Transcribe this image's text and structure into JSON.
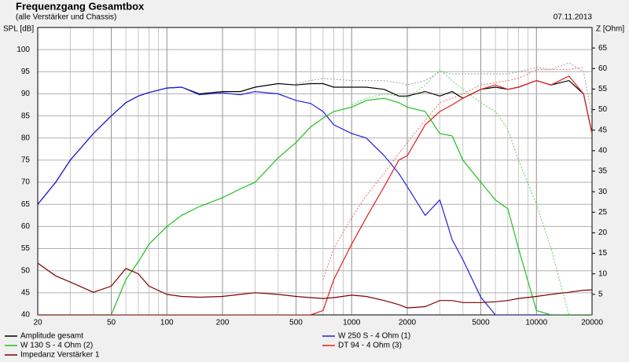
{
  "chart_data": {
    "type": "line",
    "title": "Frequenzgang Gesamtbox",
    "subtitle": "(alle Verstärker und Chassis)",
    "date": "07.11.2013",
    "y_label": "SPL [dB]",
    "y2_label": "Z [Ohm]",
    "log_x": true,
    "grid": true,
    "x": [
      20,
      25,
      30,
      40,
      50,
      60,
      70,
      80,
      100,
      120,
      150,
      200,
      250,
      300,
      400,
      500,
      600,
      700,
      800,
      1000,
      1200,
      1500,
      1800,
      2000,
      2500,
      3000,
      3500,
      4000,
      5000,
      6000,
      7000,
      8000,
      10000,
      12000,
      15000,
      18000,
      20000
    ],
    "xlim": [
      20,
      20000
    ],
    "xticks": [
      20,
      50,
      100,
      200,
      500,
      1000,
      2000,
      5000,
      10000,
      20000
    ],
    "xminorticks": [
      30,
      40,
      60,
      70,
      80,
      90,
      300,
      400,
      600,
      700,
      800,
      900,
      3000,
      4000,
      6000,
      7000,
      8000,
      9000
    ],
    "ylim": [
      40,
      105
    ],
    "yticks": [
      40,
      45,
      50,
      55,
      60,
      65,
      70,
      75,
      80,
      85,
      90,
      95,
      100
    ],
    "y2lim": [
      0,
      70
    ],
    "y2ticks": [
      5,
      10,
      15,
      20,
      25,
      30,
      35,
      40,
      45,
      50,
      55,
      60,
      65
    ],
    "series": [
      {
        "name": "Amplitude gesamt",
        "color": "#000000",
        "values": [
          65,
          70,
          75,
          81,
          85,
          88,
          89.5,
          90.3,
          91.3,
          91.5,
          90,
          90.5,
          90.5,
          91.5,
          92.3,
          92,
          92.3,
          92.3,
          91.5,
          91.5,
          91.5,
          91,
          89.5,
          89.5,
          90.5,
          89.5,
          90.5,
          89,
          91,
          91.5,
          91,
          91.5,
          93,
          92,
          93,
          90,
          81
        ]
      },
      {
        "name": "W 250 S - 4 Ohm (1)",
        "color": "#2020e0",
        "values": [
          65,
          70,
          75,
          81,
          85,
          88,
          89.5,
          90.3,
          91.3,
          91.5,
          89.8,
          90.2,
          89.8,
          90.5,
          90,
          88.5,
          87.8,
          86,
          83,
          81,
          80,
          76,
          72,
          69,
          62.5,
          66,
          57,
          52.5,
          44,
          40,
          40,
          40,
          40,
          40,
          40,
          40,
          40
        ]
      },
      {
        "name": "W 130 S - 4 Ohm (2)",
        "color": "#20c020",
        "values": [
          40,
          40,
          40,
          40,
          40,
          48,
          52,
          56,
          60,
          62.5,
          64.5,
          66.5,
          68.5,
          70,
          75.5,
          79,
          82.5,
          84.5,
          86,
          87,
          88.5,
          89,
          88,
          87,
          86,
          81,
          80.5,
          75,
          70,
          66,
          64,
          55,
          41,
          40,
          40,
          40,
          40
        ]
      },
      {
        "name": "DT 94 - 4 Ohm (3)",
        "color": "#e02020",
        "values": [
          40,
          40,
          40,
          40,
          40,
          40,
          40,
          40,
          40,
          40,
          40,
          40,
          40,
          40,
          40,
          40,
          40,
          41,
          48,
          56,
          62,
          69,
          75,
          76,
          83,
          86,
          87.5,
          89,
          91,
          92,
          91,
          91.5,
          93,
          92,
          94,
          90,
          81
        ]
      },
      {
        "name": "Impedanz Verstärker 1",
        "color": "#800000",
        "axis": "y2",
        "values": [
          12.6,
          9.5,
          8,
          5.5,
          7,
          11.3,
          10,
          7,
          5,
          4.5,
          4.3,
          4.5,
          5,
          5.4,
          5,
          4.5,
          4.2,
          4,
          4.2,
          4.8,
          4.5,
          3.5,
          2.5,
          1.7,
          2,
          3.5,
          3.5,
          3,
          3,
          3.2,
          3.5,
          4,
          4.5,
          5,
          5.5,
          6,
          6.1
        ]
      },
      {
        "color": "#a0a0a0",
        "style": "dotted",
        "values": [
          null,
          null,
          null,
          null,
          null,
          null,
          null,
          null,
          null,
          null,
          null,
          null,
          null,
          null,
          null,
          92.3,
          93,
          93.5,
          93.3,
          93,
          93,
          93,
          92.5,
          92,
          93,
          95,
          94.5,
          94.5,
          94.5,
          94.5,
          94.5,
          95,
          96,
          95.5,
          97,
          95,
          85
        ]
      },
      {
        "color": "#60d060",
        "style": "dotted",
        "values": [
          null,
          null,
          null,
          null,
          null,
          null,
          null,
          null,
          null,
          null,
          null,
          null,
          null,
          null,
          null,
          null,
          null,
          null,
          null,
          87.5,
          89,
          90,
          89.5,
          89,
          92,
          95.5,
          93,
          91,
          88,
          86,
          82,
          75,
          65,
          55,
          40,
          null,
          null
        ]
      },
      {
        "color": "#f07070",
        "style": "dotted",
        "values": [
          null,
          null,
          null,
          null,
          null,
          null,
          null,
          null,
          null,
          null,
          null,
          null,
          null,
          null,
          null,
          null,
          null,
          48,
          55,
          62,
          67,
          72,
          76.5,
          79,
          84,
          88,
          89,
          90,
          92,
          92.5,
          93,
          93.5,
          95.5,
          95.5,
          95.5,
          96,
          null
        ]
      }
    ]
  }
}
